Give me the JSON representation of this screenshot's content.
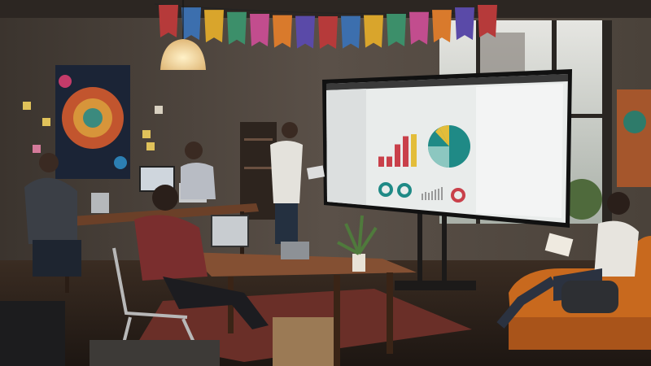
{
  "scene": {
    "colors": {
      "wall": "#4a423a",
      "floor": "#2b211b",
      "window_light": "#cfd3d2",
      "screen": "#e9eceb",
      "chart_red": "#c9404a",
      "chart_yellow": "#e3bd3a",
      "chart_teal": "#1f8a86",
      "chart_light_teal": "#8cc7c0",
      "sofa": "#c8691e",
      "table_wood": "#7a4a2c",
      "rug": "#7a3a30"
    },
    "bunting_colors": [
      "#b63a3a",
      "#3c6fae",
      "#d9a52c",
      "#3c8f6a",
      "#c24d8e",
      "#d97a2c",
      "#5a4aa8",
      "#b63a3a",
      "#3c6fae",
      "#d9a52c",
      "#3c8f6a",
      "#c24d8e",
      "#d97a2c",
      "#5a4aa8",
      "#b63a3a"
    ],
    "bar_values": [
      0.25,
      0.25,
      0.55,
      0.75,
      0.8
    ]
  }
}
